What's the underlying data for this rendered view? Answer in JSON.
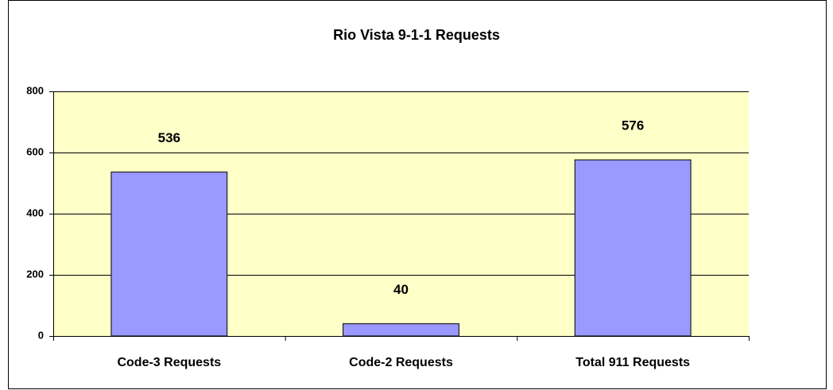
{
  "chart_data": {
    "type": "bar",
    "title": "Rio Vista 9-1-1 Requests",
    "categories": [
      "Code-3 Requests",
      "Code-2 Requests",
      "Total 911 Requests"
    ],
    "values": [
      536,
      40,
      576
    ],
    "color": "#9999ff",
    "ylim": [
      0,
      800
    ],
    "yticks": [
      0,
      200,
      400,
      600,
      800
    ],
    "grid": true
  }
}
